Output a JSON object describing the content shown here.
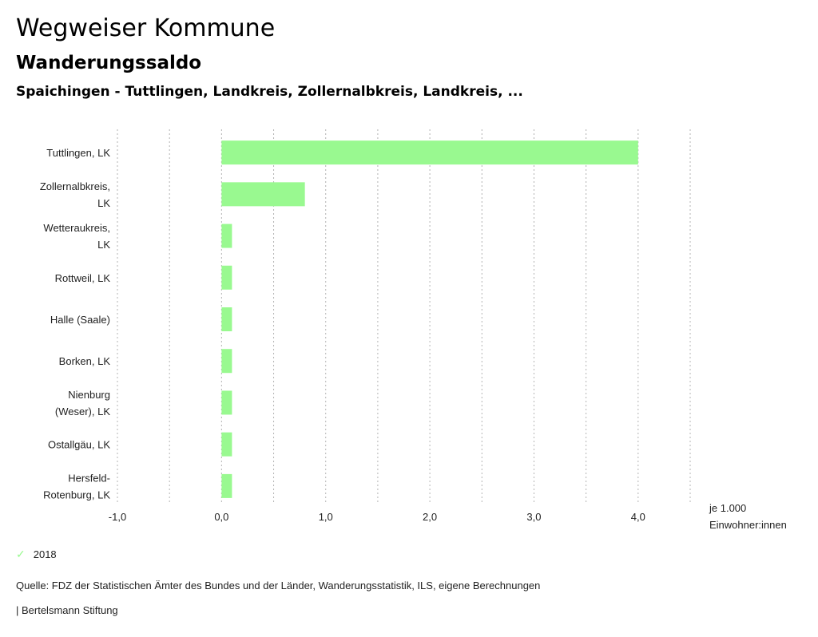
{
  "header": {
    "title": "Wegweiser Kommune",
    "subtitle": "Wanderungssaldo",
    "comparison": "Spaichingen - Tuttlingen, Landkreis, Zollernalbkreis, Landkreis, ..."
  },
  "chart_data": {
    "type": "bar",
    "orientation": "horizontal",
    "title": "Wanderungssaldo",
    "categories": [
      [
        "Tuttlingen, LK"
      ],
      [
        "Zollernalbkreis,",
        "LK"
      ],
      [
        "Wetteraukreis,",
        "LK"
      ],
      [
        "Rottweil, LK"
      ],
      [
        "Halle (Saale)"
      ],
      [
        "Borken, LK"
      ],
      [
        "Nienburg",
        "(Weser), LK"
      ],
      [
        "Ostallgäu, LK"
      ],
      [
        "Hersfeld-",
        "Rotenburg, LK"
      ]
    ],
    "series": [
      {
        "name": "2018",
        "color": "#99f990",
        "values": [
          4.0,
          0.8,
          0.1,
          0.1,
          0.1,
          0.1,
          0.1,
          0.1,
          0.1
        ]
      }
    ],
    "xlim": [
      -1.0,
      4.5
    ],
    "grid_step": 0.5,
    "ticks": [
      {
        "value": -1.0,
        "label": "-1,0"
      },
      {
        "value": 0.0,
        "label": "0,0"
      },
      {
        "value": 1.0,
        "label": "1,0"
      },
      {
        "value": 2.0,
        "label": "2,0"
      },
      {
        "value": 3.0,
        "label": "3,0"
      },
      {
        "value": 4.0,
        "label": "4,0"
      }
    ],
    "xlabel": [
      "je 1.000",
      "Einwohner:innen"
    ],
    "grid": true,
    "grid_color": "#b3b3b3",
    "legend_position": "bottom-left"
  },
  "legend": {
    "label": "2018",
    "icon": "check-icon",
    "color": "#99f990"
  },
  "footer": {
    "source": "Quelle: FDZ der Statistischen Ämter des Bundes und der Länder, Wanderungsstatistik, ILS, eigene Berechnungen",
    "credit": "| Bertelsmann Stiftung"
  }
}
